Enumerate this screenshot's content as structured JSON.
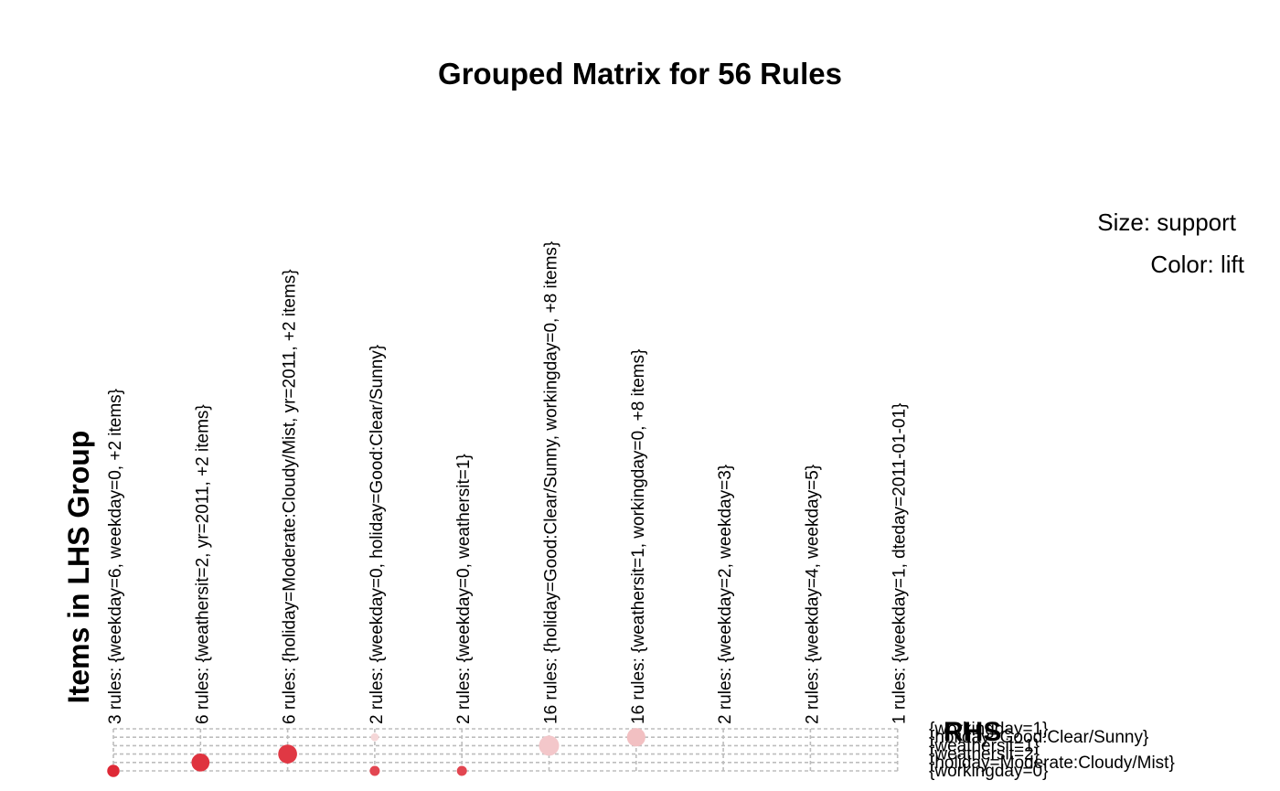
{
  "chart_data": {
    "type": "scatter",
    "title": "Grouped Matrix for 56 Rules",
    "xlabel": "Items in LHS Group",
    "ylabel": "RHS",
    "legend": {
      "size_label": "Size: support",
      "color_label": "Color: lift",
      "placement": "top-right"
    },
    "grid": true,
    "lhs_groups": [
      "3 rules: {weekday=6, weekday=0, +2 items}",
      "6 rules: {weathersit=2, yr=2011, +2 items}",
      "6 rules: {holiday=Moderate:Cloudy/Mist, yr=2011, +2 items}",
      "2 rules: {weekday=0, holiday=Good:Clear/Sunny}",
      "2 rules: {weekday=0, weathersit=1}",
      "16 rules: {holiday=Good:Clear/Sunny, workingday=0, +8 items}",
      "16 rules: {weathersit=1, workingday=0, +8 items}",
      "2 rules: {weekday=2, weekday=3}",
      "2 rules: {weekday=4, weekday=5}",
      "1 rules: {weekday=1, dteday=2011-01-01}"
    ],
    "rhs_items": [
      "{workingday=1}",
      "{holiday=Good:Clear/Sunny}",
      "{weathersit=1}",
      "{weathersit=2}",
      "{holiday=Moderate:Cloudy/Mist}",
      "{workingday=0}"
    ],
    "points": [
      {
        "group": 0,
        "rhs": 5,
        "support": 0.1,
        "lift": 1.0
      },
      {
        "group": 1,
        "rhs": 4,
        "support": 0.3,
        "lift": 0.95
      },
      {
        "group": 2,
        "rhs": 3,
        "support": 0.34,
        "lift": 0.92
      },
      {
        "group": 3,
        "rhs": 5,
        "support": 0.05,
        "lift": 0.85
      },
      {
        "group": 3,
        "rhs": 1,
        "support": 0.02,
        "lift": 0.1
      },
      {
        "group": 4,
        "rhs": 5,
        "support": 0.05,
        "lift": 0.85
      },
      {
        "group": 5,
        "rhs": 2,
        "support": 0.4,
        "lift": 0.18
      },
      {
        "group": 6,
        "rhs": 1,
        "support": 0.32,
        "lift": 0.22
      }
    ]
  }
}
